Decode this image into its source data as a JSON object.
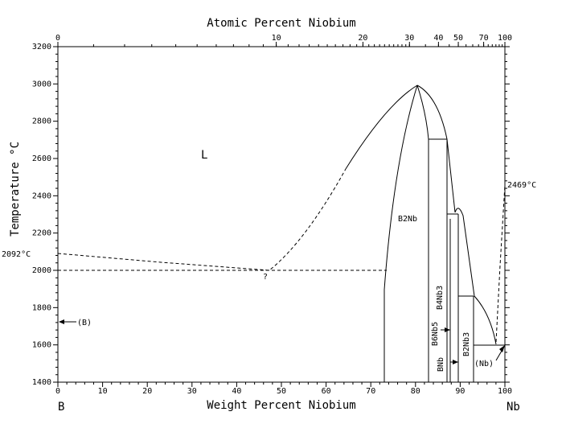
{
  "title_top": "Atomic Percent Niobium",
  "xlabel": "Weight Percent Niobium",
  "ylabel": "Temperature °C",
  "x_ticks": [
    "0",
    "10",
    "20",
    "30",
    "40",
    "50",
    "60",
    "70",
    "80",
    "90",
    "100"
  ],
  "y_ticks": [
    "1400",
    "1600",
    "1800",
    "2000",
    "2200",
    "2400",
    "2600",
    "2800",
    "3000",
    "3200"
  ],
  "top_ticks": [
    {
      "at": 0,
      "label": "0"
    },
    {
      "at": 10,
      "label": "10"
    },
    {
      "at": 20,
      "label": "20"
    },
    {
      "at": 30,
      "label": "30"
    },
    {
      "at": 40,
      "label": "40"
    },
    {
      "at": 50,
      "label": "50"
    },
    {
      "at": 70,
      "label": "70"
    },
    {
      "at": 100,
      "label": "100"
    }
  ],
  "end_left": "B",
  "end_right": "Nb",
  "labels": {
    "liquid": "L",
    "b2nb": "B2Nb",
    "b4nb3": "B4Nb3",
    "b6nb5": "B6Nb5",
    "bnb": "BNb",
    "b2nb3": "B2Nb3",
    "nb": "(Nb)",
    "b": "(B)",
    "b_melt": "2092°C",
    "nb_melt": "2469°C",
    "eutectic_q": "?"
  }
}
